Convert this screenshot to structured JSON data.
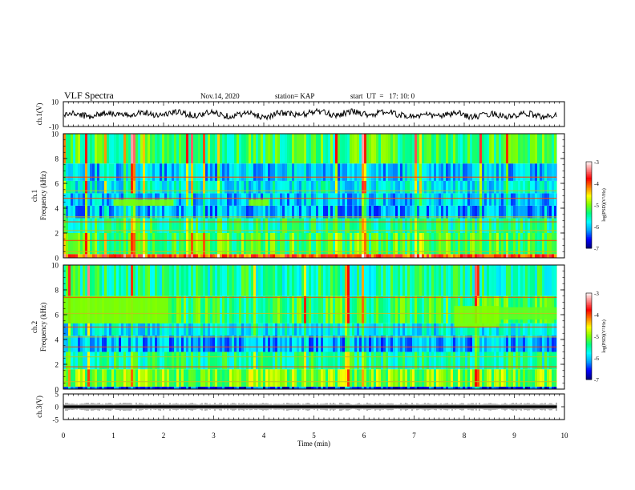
{
  "header": {
    "title": "VLF Spectra",
    "date": "Nov.14, 2020",
    "station": "station= KAP",
    "start": "start  UT  =   17: 10: 0"
  },
  "chart_data": [
    {
      "type": "line",
      "panel": "ch1_waveform",
      "ylabel": "ch.1(V)",
      "ylim": [
        -10,
        10
      ],
      "yticks": [
        "10",
        "-10"
      ],
      "xlim": [
        0,
        10
      ],
      "x_end": 9.85,
      "approx_profile": {
        "x": [
          0,
          1,
          2,
          3,
          4,
          5,
          5.5,
          6,
          6.8,
          7.1,
          7.5,
          8,
          9,
          9.85
        ],
        "y": [
          -1,
          0,
          0.5,
          0,
          -1,
          1,
          0.5,
          1,
          0,
          -2.5,
          0,
          -1,
          -1,
          -1
        ]
      },
      "color": "#000000"
    },
    {
      "type": "heatmap",
      "panel": "ch1_spectrogram",
      "ylabel": "ch.1\nFrequency (kHz)",
      "ylim": [
        0,
        10
      ],
      "yticks": [
        "0",
        "2",
        "4",
        "6",
        "8",
        "10"
      ],
      "xlim": [
        0,
        10
      ],
      "x_end": 9.85,
      "colorbar": {
        "label": "log(PSD)(V²/Hz)",
        "ticks": [
          "-3",
          "-4",
          "-5",
          "-6",
          "-7"
        ],
        "range": [
          -7,
          -3
        ]
      },
      "bands": [
        {
          "f": [
            0,
            0.3
          ],
          "level": -4.0
        },
        {
          "f": [
            0.3,
            2.0
          ],
          "level": -5.2
        },
        {
          "f": [
            2.0,
            3.2
          ],
          "level": -5.5
        },
        {
          "f": [
            3.2,
            4.2
          ],
          "level": -6.1
        },
        {
          "f": [
            4.2,
            5.2
          ],
          "level": -6.0
        },
        {
          "f": [
            5.2,
            6.2
          ],
          "level": -5.8
        },
        {
          "f": [
            6.2,
            7.6
          ],
          "level": -6.0
        },
        {
          "f": [
            7.6,
            10
          ],
          "level": -5.3
        }
      ],
      "lines_khz": [
        0.5,
        1.4,
        2.2,
        2.9,
        3.3,
        4.8,
        5.4,
        6.5
      ],
      "patches": [
        {
          "t": [
            1.0,
            2.2
          ],
          "f": [
            4.2,
            4.7
          ],
          "level": -5.0
        },
        {
          "t": [
            3.7,
            4.1
          ],
          "f": [
            4.2,
            4.7
          ],
          "level": -5.0
        }
      ]
    },
    {
      "type": "heatmap",
      "panel": "ch2_spectrogram",
      "ylabel": "ch.2\nFrequency (kHz)",
      "ylim": [
        0,
        10
      ],
      "yticks": [
        "0",
        "2",
        "4",
        "6",
        "8",
        "10"
      ],
      "xlim": [
        0,
        10
      ],
      "x_end": 9.85,
      "colorbar": {
        "label": "log(PSD)(V²/Hz)",
        "ticks": [
          "-3",
          "-4",
          "-5",
          "-6",
          "-7"
        ],
        "range": [
          -7,
          -3
        ]
      },
      "bands": [
        {
          "f": [
            0,
            0.2
          ],
          "level": -6.5
        },
        {
          "f": [
            0.2,
            1.6
          ],
          "level": -5.0
        },
        {
          "f": [
            1.6,
            3.0
          ],
          "level": -5.5
        },
        {
          "f": [
            3.0,
            4.3
          ],
          "level": -6.1
        },
        {
          "f": [
            4.3,
            5.3
          ],
          "level": -5.8
        },
        {
          "f": [
            5.3,
            7.5
          ],
          "level": -5.3
        },
        {
          "f": [
            7.5,
            10
          ],
          "level": -5.5
        }
      ],
      "lines_khz": [
        0.6,
        1.8,
        2.6,
        3.4,
        4.2,
        5.0,
        6.1,
        7.4
      ],
      "patches": [
        {
          "t": [
            0,
            2.1
          ],
          "f": [
            5.3,
            7.5
          ],
          "level": -5.0
        },
        {
          "t": [
            7.8,
            8.7
          ],
          "f": [
            5.0,
            6.7
          ],
          "level": -5.0
        },
        {
          "t": [
            8.7,
            9.85
          ],
          "f": [
            5.6,
            6.6
          ],
          "level": -5.1
        }
      ]
    },
    {
      "type": "line",
      "panel": "ch3_waveform",
      "ylabel": "ch.3(V)",
      "ylim": [
        -5,
        5
      ],
      "yticks": [
        "5",
        "0",
        "-5"
      ],
      "xlim": [
        0,
        10
      ],
      "x_end": 9.85,
      "level": 0,
      "amplitude": 0.5,
      "color": "#000000"
    }
  ],
  "xaxis": {
    "label": "Time (min)",
    "ticks": [
      "0",
      "1",
      "2",
      "3",
      "4",
      "5",
      "6",
      "7",
      "8",
      "9",
      "10"
    ]
  },
  "colors": {
    "colormap": [
      "#000080",
      "#0000ff",
      "#00a0ff",
      "#00ffff",
      "#00ff80",
      "#80ff00",
      "#ffff00",
      "#ff8000",
      "#ff0000",
      "#ff8080",
      "#ffffff"
    ]
  }
}
